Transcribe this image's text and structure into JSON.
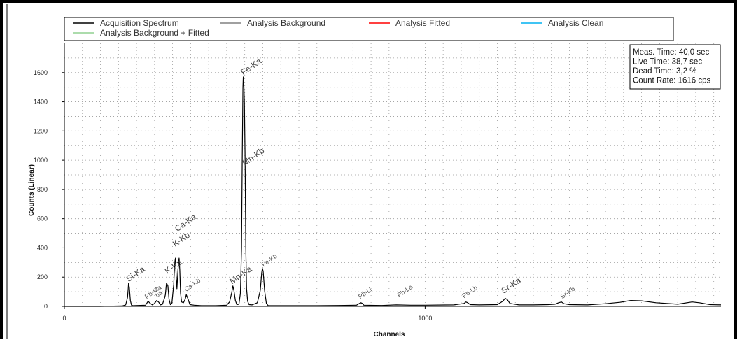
{
  "chart_data": {
    "type": "line",
    "xlabel": "Channels",
    "ylabel": "Counts (Linear)",
    "xlim": [
      0,
      1820
    ],
    "ylim": [
      0,
      1800
    ],
    "x_ticks": [
      {
        "value": 0,
        "label": "0"
      },
      {
        "value": 1000,
        "label": "1000"
      }
    ],
    "y_ticks": [
      {
        "value": 0,
        "label": "0"
      },
      {
        "value": 200,
        "label": "200"
      },
      {
        "value": 400,
        "label": "400"
      },
      {
        "value": 600,
        "label": "600"
      },
      {
        "value": 800,
        "label": "800"
      },
      {
        "value": 1000,
        "label": "1000"
      },
      {
        "value": 1200,
        "label": "1200"
      },
      {
        "value": 1400,
        "label": "1400"
      },
      {
        "value": 1600,
        "label": "1600"
      }
    ],
    "grid": true,
    "legend_position": "top",
    "legend": [
      {
        "name": "Acquisition Spectrum",
        "color": "#000000"
      },
      {
        "name": "Analysis Background",
        "color": "#808080"
      },
      {
        "name": "Analysis Fitted",
        "color": "#ff0000"
      },
      {
        "name": "Analysis Clean",
        "color": "#00b0f0"
      },
      {
        "name": "Analysis Background + Fitted",
        "color": "#90d090"
      }
    ],
    "info_box": [
      "Meas. Time: 40,0 sec",
      "Live Time: 38,7 sec",
      "Dead Time: 3,2 %",
      "Count Rate: 1616 cps"
    ],
    "series": [
      {
        "name": "Acquisition Spectrum",
        "color": "#000000",
        "points": [
          [
            0,
            0
          ],
          [
            100,
            0
          ],
          [
            160,
            3
          ],
          [
            170,
            10
          ],
          [
            175,
            60
          ],
          [
            177,
            120
          ],
          [
            178,
            160
          ],
          [
            180,
            130
          ],
          [
            183,
            40
          ],
          [
            186,
            8
          ],
          [
            190,
            5
          ],
          [
            225,
            8
          ],
          [
            232,
            35
          ],
          [
            238,
            20
          ],
          [
            244,
            10
          ],
          [
            250,
            20
          ],
          [
            256,
            40
          ],
          [
            262,
            28
          ],
          [
            266,
            10
          ],
          [
            272,
            15
          ],
          [
            278,
            60
          ],
          [
            280,
            80
          ],
          [
            283,
            160
          ],
          [
            287,
            140
          ],
          [
            290,
            50
          ],
          [
            294,
            12
          ],
          [
            298,
            20
          ],
          [
            303,
            150
          ],
          [
            306,
            300
          ],
          [
            308,
            330
          ],
          [
            310,
            200
          ],
          [
            312,
            120
          ],
          [
            315,
            250
          ],
          [
            318,
            330
          ],
          [
            320,
            250
          ],
          [
            322,
            90
          ],
          [
            325,
            30
          ],
          [
            330,
            25
          ],
          [
            335,
            50
          ],
          [
            338,
            80
          ],
          [
            342,
            55
          ],
          [
            348,
            12
          ],
          [
            360,
            8
          ],
          [
            380,
            5
          ],
          [
            420,
            5
          ],
          [
            450,
            8
          ],
          [
            458,
            30
          ],
          [
            464,
            95
          ],
          [
            467,
            140
          ],
          [
            470,
            110
          ],
          [
            474,
            40
          ],
          [
            478,
            12
          ],
          [
            484,
            15
          ],
          [
            488,
            90
          ],
          [
            491,
            400
          ],
          [
            493,
            1000
          ],
          [
            495,
            1500
          ],
          [
            496,
            1570
          ],
          [
            497,
            1560
          ],
          [
            499,
            1400
          ],
          [
            501,
            1000
          ],
          [
            503,
            400
          ],
          [
            505,
            120
          ],
          [
            508,
            35
          ],
          [
            512,
            12
          ],
          [
            520,
            10
          ],
          [
            535,
            25
          ],
          [
            543,
            110
          ],
          [
            547,
            230
          ],
          [
            549,
            260
          ],
          [
            551,
            240
          ],
          [
            555,
            110
          ],
          [
            560,
            20
          ],
          [
            565,
            5
          ],
          [
            620,
            5
          ],
          [
            700,
            5
          ],
          [
            760,
            6
          ],
          [
            810,
            8
          ],
          [
            818,
            20
          ],
          [
            822,
            25
          ],
          [
            826,
            20
          ],
          [
            830,
            8
          ],
          [
            880,
            6
          ],
          [
            920,
            10
          ],
          [
            960,
            8
          ],
          [
            1000,
            8
          ],
          [
            1080,
            10
          ],
          [
            1108,
            20
          ],
          [
            1113,
            30
          ],
          [
            1118,
            25
          ],
          [
            1125,
            12
          ],
          [
            1150,
            10
          ],
          [
            1200,
            12
          ],
          [
            1215,
            35
          ],
          [
            1222,
            55
          ],
          [
            1228,
            45
          ],
          [
            1235,
            20
          ],
          [
            1260,
            10
          ],
          [
            1300,
            10
          ],
          [
            1340,
            12
          ],
          [
            1360,
            15
          ],
          [
            1370,
            25
          ],
          [
            1378,
            30
          ],
          [
            1385,
            18
          ],
          [
            1400,
            12
          ],
          [
            1450,
            10
          ],
          [
            1500,
            18
          ],
          [
            1540,
            28
          ],
          [
            1570,
            40
          ],
          [
            1600,
            38
          ],
          [
            1640,
            25
          ],
          [
            1700,
            15
          ],
          [
            1740,
            30
          ],
          [
            1760,
            25
          ],
          [
            1790,
            12
          ],
          [
            1820,
            10
          ]
        ]
      }
    ],
    "peak_labels": [
      {
        "text": "Si-Ka",
        "x": 178,
        "y": 165,
        "size": "large"
      },
      {
        "text": "Pb-Ma",
        "x": 228,
        "y": 50,
        "size": "small"
      },
      {
        "text": "ba",
        "x": 257,
        "y": 60,
        "size": "small"
      },
      {
        "text": "K-Ka",
        "x": 285,
        "y": 220,
        "size": "large"
      },
      {
        "text": "K-Kb",
        "x": 307,
        "y": 405,
        "size": "large"
      },
      {
        "text": "Ca-Ka",
        "x": 313,
        "y": 510,
        "size": "large"
      },
      {
        "text": "Ca-Kb",
        "x": 338,
        "y": 100,
        "size": "small"
      },
      {
        "text": "Mn-Ka",
        "x": 465,
        "y": 150,
        "size": "large"
      },
      {
        "text": "Fe-Ka",
        "x": 496,
        "y": 1580,
        "size": "large"
      },
      {
        "text": "Mn-Kb",
        "x": 500,
        "y": 960,
        "size": "large"
      },
      {
        "text": "Fe-Kb",
        "x": 552,
        "y": 270,
        "size": "small"
      },
      {
        "text": "Pb-Ll",
        "x": 820,
        "y": 50,
        "size": "small"
      },
      {
        "text": "Pb-La",
        "x": 928,
        "y": 60,
        "size": "small"
      },
      {
        "text": "Pb-Lb",
        "x": 1108,
        "y": 55,
        "size": "small"
      },
      {
        "text": "Sr-Ka",
        "x": 1218,
        "y": 85,
        "size": "large"
      },
      {
        "text": "Sr-Kb",
        "x": 1380,
        "y": 50,
        "size": "small"
      }
    ]
  }
}
